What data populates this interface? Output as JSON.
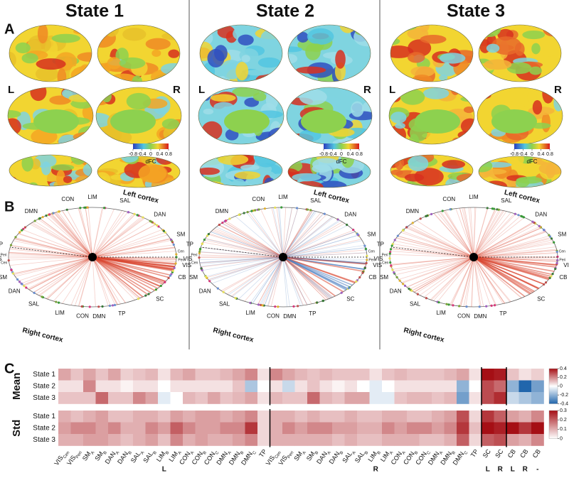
{
  "states": [
    "State 1",
    "State 2",
    "State 3"
  ],
  "panel_labels": [
    "A",
    "B",
    "C"
  ],
  "panel_a": {
    "hemisphere_labels": [
      "L",
      "R"
    ],
    "colorbar": {
      "label": "dFC",
      "lim": [
        -0.8,
        0.8
      ],
      "ticks": [
        -0.8,
        -0.4,
        0,
        0.4,
        0.8
      ]
    }
  },
  "panel_b": {
    "left_cortex": "Left cortex",
    "right_cortex": "Right cortex",
    "network_labels": [
      "TP",
      "DMN",
      "CON",
      "LIM",
      "SAL",
      "DAN",
      "SM",
      "VIS",
      "CB",
      "SC",
      "TP",
      "DMN",
      "CON",
      "LIM",
      "SAL",
      "DAN",
      "SM",
      "VIS"
    ],
    "sub_labels": [
      "Cen",
      "Peri",
      "Peri",
      "Cen"
    ]
  },
  "chart_data": {
    "type": "heatmap",
    "categories": [
      "VIS",
      "VIS",
      "SM",
      "SM",
      "DAN",
      "DAN",
      "SAL",
      "SAL",
      "LIM",
      "LIM",
      "CON",
      "CON",
      "CON",
      "DMN",
      "DMN",
      "DMN",
      "TP",
      "VIS",
      "VIS",
      "SM",
      "SM",
      "DAN",
      "DAN",
      "SAL",
      "SAL",
      "LIM",
      "LIM",
      "CON",
      "CON",
      "CON",
      "DMN",
      "DMN",
      "DMN",
      "TP",
      "SC",
      "SC",
      "CB",
      "CB",
      "CB"
    ],
    "category_subscripts": [
      "Cen",
      "Peri",
      "A",
      "B",
      "A",
      "B",
      "A",
      "B",
      "B",
      "A",
      "A",
      "B",
      "C",
      "A",
      "B",
      "C",
      null,
      "Cen",
      "Peri",
      "A",
      "B",
      "A",
      "B",
      "A",
      "B",
      "B",
      "A",
      "A",
      "B",
      "C",
      "A",
      "B",
      "C",
      null,
      null,
      null,
      null,
      null,
      null
    ],
    "column_groups": [
      null,
      null,
      null,
      null,
      null,
      null,
      null,
      null,
      "L",
      null,
      null,
      null,
      null,
      null,
      null,
      null,
      null,
      null,
      null,
      null,
      null,
      null,
      null,
      null,
      null,
      "R",
      null,
      null,
      null,
      null,
      null,
      null,
      null,
      null,
      "L",
      "R",
      "L",
      "R",
      "-"
    ],
    "panels": [
      {
        "name": "Mean",
        "rows": [
          "State 1",
          "State 2",
          "State 3"
        ],
        "zlim": [
          -0.4,
          0.4
        ],
        "ticks": [
          0.4,
          0.2,
          0,
          -0.2,
          -0.4
        ],
        "values": [
          [
            0.15,
            0.1,
            0.15,
            0.1,
            0.15,
            0.08,
            0.1,
            0.12,
            0.05,
            0.12,
            0.15,
            0.1,
            0.1,
            0.12,
            0.15,
            0.2,
            0.05,
            0.2,
            0.15,
            0.12,
            0.1,
            0.12,
            0.1,
            0.1,
            0.1,
            0.05,
            0.1,
            0.12,
            0.1,
            0.1,
            0.1,
            0.12,
            0.15,
            0.05,
            0.4,
            0.38,
            0.1,
            0.05,
            0.08
          ],
          [
            0.05,
            0.05,
            0.2,
            0.05,
            0.05,
            0.02,
            0.05,
            0.05,
            0,
            0.05,
            0.05,
            0.05,
            0.05,
            0.05,
            0.1,
            -0.15,
            0,
            0.05,
            -0.1,
            0.05,
            0.1,
            0.05,
            0.02,
            0.05,
            0,
            -0.05,
            0,
            0.05,
            0.05,
            0.05,
            0.05,
            0.05,
            -0.2,
            0,
            0.3,
            0.25,
            -0.2,
            -0.4,
            -0.25
          ],
          [
            0.1,
            0.1,
            0.1,
            0.25,
            0.1,
            0.1,
            0.2,
            0.15,
            -0.05,
            0,
            0.12,
            0.1,
            0.15,
            0.1,
            0.12,
            0.15,
            0.05,
            0.12,
            0.1,
            0.1,
            0.25,
            0.12,
            0.1,
            0.15,
            0.15,
            -0.05,
            -0.05,
            0.1,
            0.12,
            0.12,
            0.1,
            0.12,
            -0.25,
            0.05,
            0.3,
            0.35,
            -0.1,
            -0.15,
            -0.2
          ]
        ]
      },
      {
        "name": "Std",
        "rows": [
          "State 1",
          "State 2",
          "State 3"
        ],
        "zlim": [
          0,
          0.3
        ],
        "ticks": [
          0.3,
          0.2,
          0.1,
          0
        ],
        "values": [
          [
            0.1,
            0.08,
            0.1,
            0.12,
            0.08,
            0.08,
            0.1,
            0.1,
            0.08,
            0.12,
            0.1,
            0.12,
            0.12,
            0.1,
            0.12,
            0.15,
            0.05,
            0.1,
            0.1,
            0.08,
            0.1,
            0.08,
            0.08,
            0.1,
            0.08,
            0.08,
            0.1,
            0.1,
            0.08,
            0.08,
            0.1,
            0.12,
            0.22,
            0.05,
            0.25,
            0.2,
            0.12,
            0.1,
            0.15
          ],
          [
            0.12,
            0.15,
            0.15,
            0.12,
            0.15,
            0.1,
            0.1,
            0.15,
            0.12,
            0.2,
            0.15,
            0.12,
            0.12,
            0.15,
            0.15,
            0.25,
            0.05,
            0.1,
            0.15,
            0.12,
            0.15,
            0.15,
            0.12,
            0.12,
            0.1,
            0.1,
            0.15,
            0.12,
            0.15,
            0.15,
            0.12,
            0.15,
            0.25,
            0.08,
            0.3,
            0.28,
            0.3,
            0.25,
            0.3
          ],
          [
            0.1,
            0.1,
            0.12,
            0.12,
            0.1,
            0.08,
            0.1,
            0.12,
            0.08,
            0.15,
            0.1,
            0.12,
            0.1,
            0.1,
            0.12,
            0.15,
            0.05,
            0.1,
            0.1,
            0.1,
            0.1,
            0.1,
            0.08,
            0.1,
            0.08,
            0.08,
            0.1,
            0.1,
            0.1,
            0.08,
            0.08,
            0.1,
            0.2,
            0.05,
            0.2,
            0.22,
            0.12,
            0.1,
            0.15
          ]
        ]
      }
    ]
  }
}
